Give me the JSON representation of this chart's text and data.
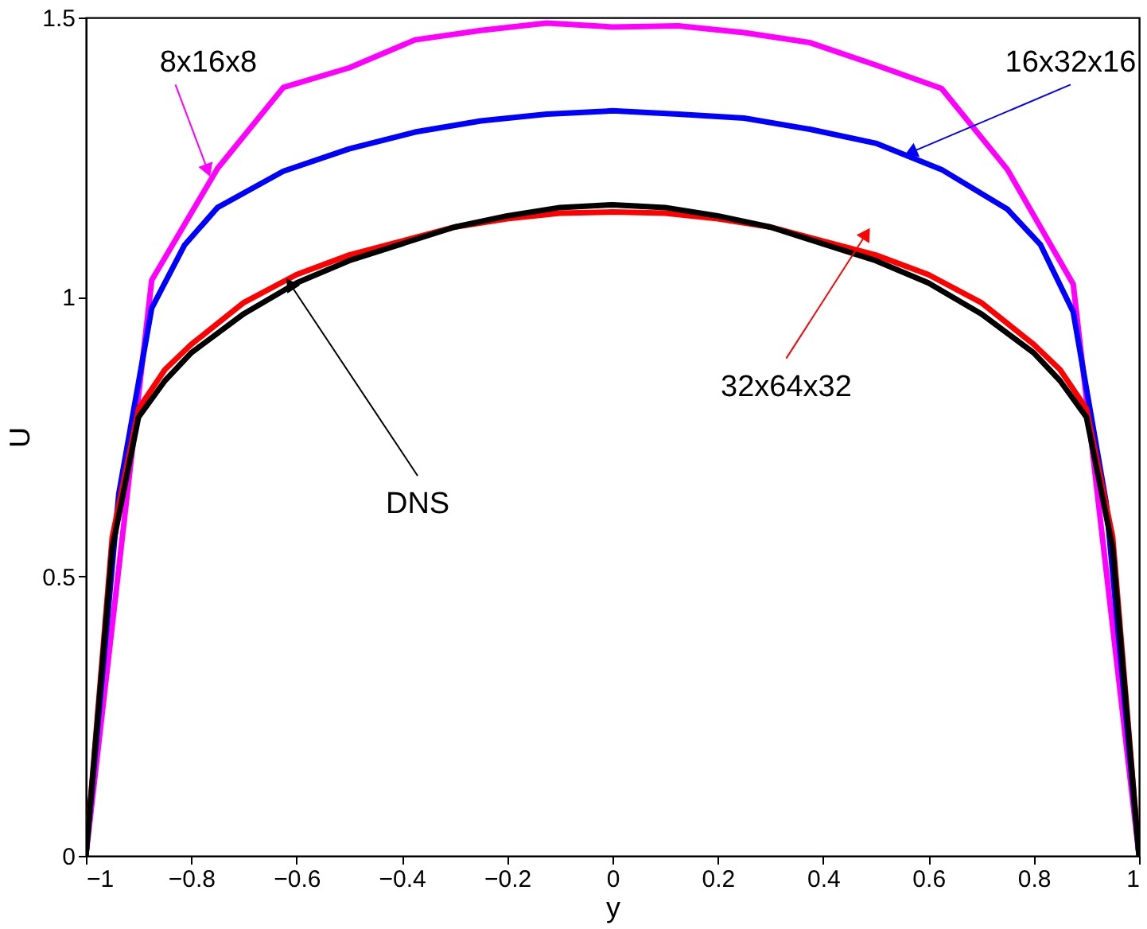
{
  "chart_data": {
    "type": "line",
    "xlabel": "y",
    "ylabel": "U",
    "xlim": [
      -1,
      1
    ],
    "ylim": [
      0,
      1.5
    ],
    "xticks": [
      -1,
      -0.8,
      -0.6,
      -0.4,
      -0.2,
      0,
      0.2,
      0.4,
      0.6,
      0.8,
      1
    ],
    "yticks": [
      0,
      0.5,
      1,
      1.5
    ],
    "grid": false,
    "legend": false,
    "marker": "none",
    "line_style": "solid",
    "series": [
      {
        "color": "#ff00ff",
        "x": [
          -1,
          -0.875,
          -0.75,
          -0.625,
          -0.5,
          -0.375,
          -0.25,
          -0.125,
          0,
          0.125,
          0.25,
          0.375,
          0.5,
          0.625,
          0.75,
          0.875,
          1
        ],
        "values": [
          0,
          1.03,
          1.23,
          1.375,
          1.41,
          1.46,
          1.477,
          1.49,
          1.483,
          1.485,
          1.473,
          1.455,
          1.415,
          1.373,
          1.228,
          1.023,
          0
        ]
      },
      {
        "color": "#0000ff",
        "x": [
          -1,
          -0.9375,
          -0.875,
          -0.8125,
          -0.75,
          -0.625,
          -0.5,
          -0.375,
          -0.25,
          -0.125,
          0,
          0.125,
          0.25,
          0.375,
          0.5,
          0.625,
          0.75,
          0.8125,
          0.875,
          0.9375,
          1
        ],
        "values": [
          0,
          0.648,
          0.98,
          1.093,
          1.16,
          1.225,
          1.265,
          1.295,
          1.315,
          1.327,
          1.333,
          1.327,
          1.32,
          1.3,
          1.275,
          1.228,
          1.157,
          1.094,
          0.973,
          0.632,
          0
        ]
      },
      {
        "color": "#ff0000",
        "x": [
          -1,
          -0.95,
          -0.9,
          -0.85,
          -0.8,
          -0.7,
          -0.6,
          -0.5,
          -0.4,
          -0.3,
          -0.2,
          -0.1,
          0,
          0.1,
          0.2,
          0.3,
          0.4,
          0.5,
          0.6,
          0.7,
          0.8,
          0.85,
          0.9,
          0.95,
          1
        ],
        "values": [
          0,
          0.57,
          0.8,
          0.87,
          0.915,
          0.99,
          1.04,
          1.075,
          1.1,
          1.125,
          1.14,
          1.15,
          1.152,
          1.15,
          1.14,
          1.125,
          1.1,
          1.075,
          1.04,
          0.99,
          0.915,
          0.87,
          0.8,
          0.57,
          0
        ]
      },
      {
        "color": "#000000",
        "x": [
          -1,
          -0.95,
          -0.9,
          -0.85,
          -0.8,
          -0.7,
          -0.6,
          -0.5,
          -0.4,
          -0.3,
          -0.2,
          -0.1,
          0,
          0.1,
          0.2,
          0.3,
          0.4,
          0.5,
          0.6,
          0.7,
          0.8,
          0.85,
          0.9,
          0.95,
          1
        ],
        "values": [
          0,
          0.55,
          0.785,
          0.85,
          0.9,
          0.97,
          1.025,
          1.065,
          1.095,
          1.125,
          1.145,
          1.16,
          1.165,
          1.16,
          1.145,
          1.125,
          1.095,
          1.065,
          1.025,
          0.97,
          0.9,
          0.85,
          0.785,
          0.55,
          0
        ]
      }
    ],
    "annotations": [
      {
        "text": "8x16x8",
        "x": -0.77,
        "y": 1.23
      },
      {
        "text": "16x32x16",
        "x": 0.57,
        "y": 1.26
      },
      {
        "text": "32x64x32",
        "x": 0.48,
        "y": 1.11
      },
      {
        "text": "DNS",
        "x": -0.61,
        "y": 1.02
      }
    ]
  }
}
